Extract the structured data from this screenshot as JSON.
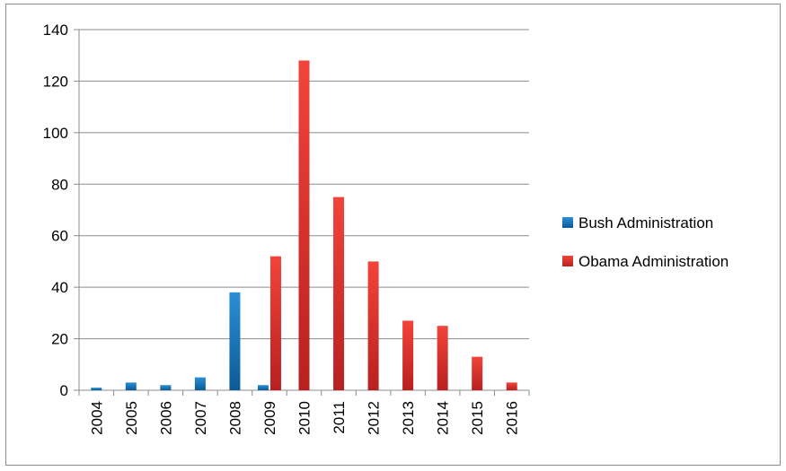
{
  "chart_data": {
    "type": "bar",
    "categories": [
      "2004",
      "2005",
      "2006",
      "2007",
      "2008",
      "2009",
      "2010",
      "2011",
      "2012",
      "2013",
      "2014",
      "2015",
      "2016"
    ],
    "series": [
      {
        "name": "Bush Administration",
        "color": "#1f77c0",
        "values": [
          1,
          3,
          2,
          5,
          38,
          2,
          0,
          0,
          0,
          0,
          0,
          0,
          0
        ]
      },
      {
        "name": "Obama Administration",
        "color": "#e03131",
        "values": [
          0,
          0,
          0,
          0,
          0,
          52,
          128,
          75,
          50,
          27,
          25,
          13,
          3
        ]
      }
    ],
    "ylim": [
      0,
      140
    ],
    "yticks": [
      0,
      20,
      40,
      60,
      80,
      100,
      120,
      140
    ],
    "grid": true,
    "legend_position": "right"
  }
}
